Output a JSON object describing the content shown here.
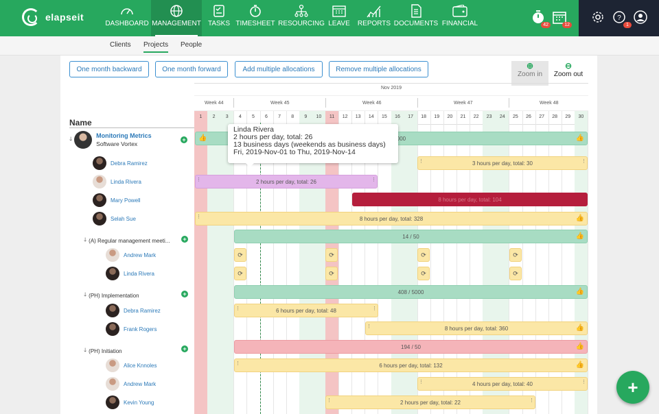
{
  "app": {
    "name": "elapseit"
  },
  "nav": [
    {
      "label": "DASHBOARD",
      "icon": "dashboard-icon"
    },
    {
      "label": "MANAGEMENT",
      "icon": "globe-icon",
      "active": true
    },
    {
      "label": "TASKS",
      "icon": "tasks-icon"
    },
    {
      "label": "TIMESHEET",
      "icon": "stopwatch-icon"
    },
    {
      "label": "RESOURCING",
      "icon": "org-chart-icon"
    },
    {
      "label": "LEAVE",
      "icon": "calendar-icon"
    },
    {
      "label": "REPORTS",
      "icon": "chart-icon"
    },
    {
      "label": "DOCUMENTS",
      "icon": "document-icon"
    },
    {
      "label": "FINANCIAL",
      "icon": "wallet-icon"
    }
  ],
  "header_badges": {
    "timer": "42",
    "calendar": "12",
    "help": "1"
  },
  "subnav": [
    {
      "label": "Clients"
    },
    {
      "label": "Projects",
      "active": true
    },
    {
      "label": "People"
    }
  ],
  "toolbar": {
    "back": "One month backward",
    "forward": "One month forward",
    "add": "Add multiple allocations",
    "remove": "Remove multiple allocations",
    "zoom_in": "Zoom in",
    "zoom_out": "Zoom out"
  },
  "gantt": {
    "name_header": "Name",
    "month": "Nov 2019",
    "weeks": [
      "Week 44",
      "Week 45",
      "Week 46",
      "Week 47",
      "Week 48"
    ],
    "days": [
      "1",
      "2",
      "3",
      "4",
      "5",
      "6",
      "7",
      "8",
      "9",
      "10",
      "11",
      "12",
      "13",
      "14",
      "15",
      "16",
      "17",
      "18",
      "19",
      "20",
      "21",
      "22",
      "23",
      "24",
      "25",
      "26",
      "27",
      "28",
      "29",
      "30"
    ]
  },
  "tooltip": {
    "name": "Linda Rivera",
    "line1": "2 hours per day, total: 26",
    "line2": "13 business days (weekends as business days)",
    "line3": "Fri, 2019-Nov-01 to Thu, 2019-Nov-14"
  },
  "project": {
    "name": "Monitoring Metrics",
    "client": "Software Vortex"
  },
  "rows": {
    "debra1": "Debra Ramirez",
    "linda1": "Linda Rivera",
    "mary": "Mary Powell",
    "selah": "Selah Sue",
    "phase_a": "(A) Regular management meeti...",
    "andrew1": "Andrew Mark",
    "linda2": "Linda Rivera",
    "phase_impl": "(PH) Implementation",
    "debra2": "Debra Ramirez",
    "frank": "Frank Rogers",
    "phase_init": "(PH) Initiation",
    "alice": "Alice Knnoles",
    "andrew2": "Andrew Mark",
    "kevin": "Kevin Young"
  },
  "bars": {
    "project_total": "4160 / 5000",
    "debra1": "3 hours per day, total: 30",
    "linda1": "2 hours per day, total: 26",
    "mary": "8 hours per day, total: 104",
    "selah": "8 hours per day, total: 328",
    "phase_a": "14 / 50",
    "phase_impl": "408 / 5000",
    "debra2": "6 hours per day, total: 48",
    "frank": "8 hours per day, total: 360",
    "phase_init": "194 / 50",
    "alice": "6 hours per day, total: 132",
    "andrew2": "4 hours per day, total: 40",
    "kevin": "2 hours per day, total: 22"
  }
}
